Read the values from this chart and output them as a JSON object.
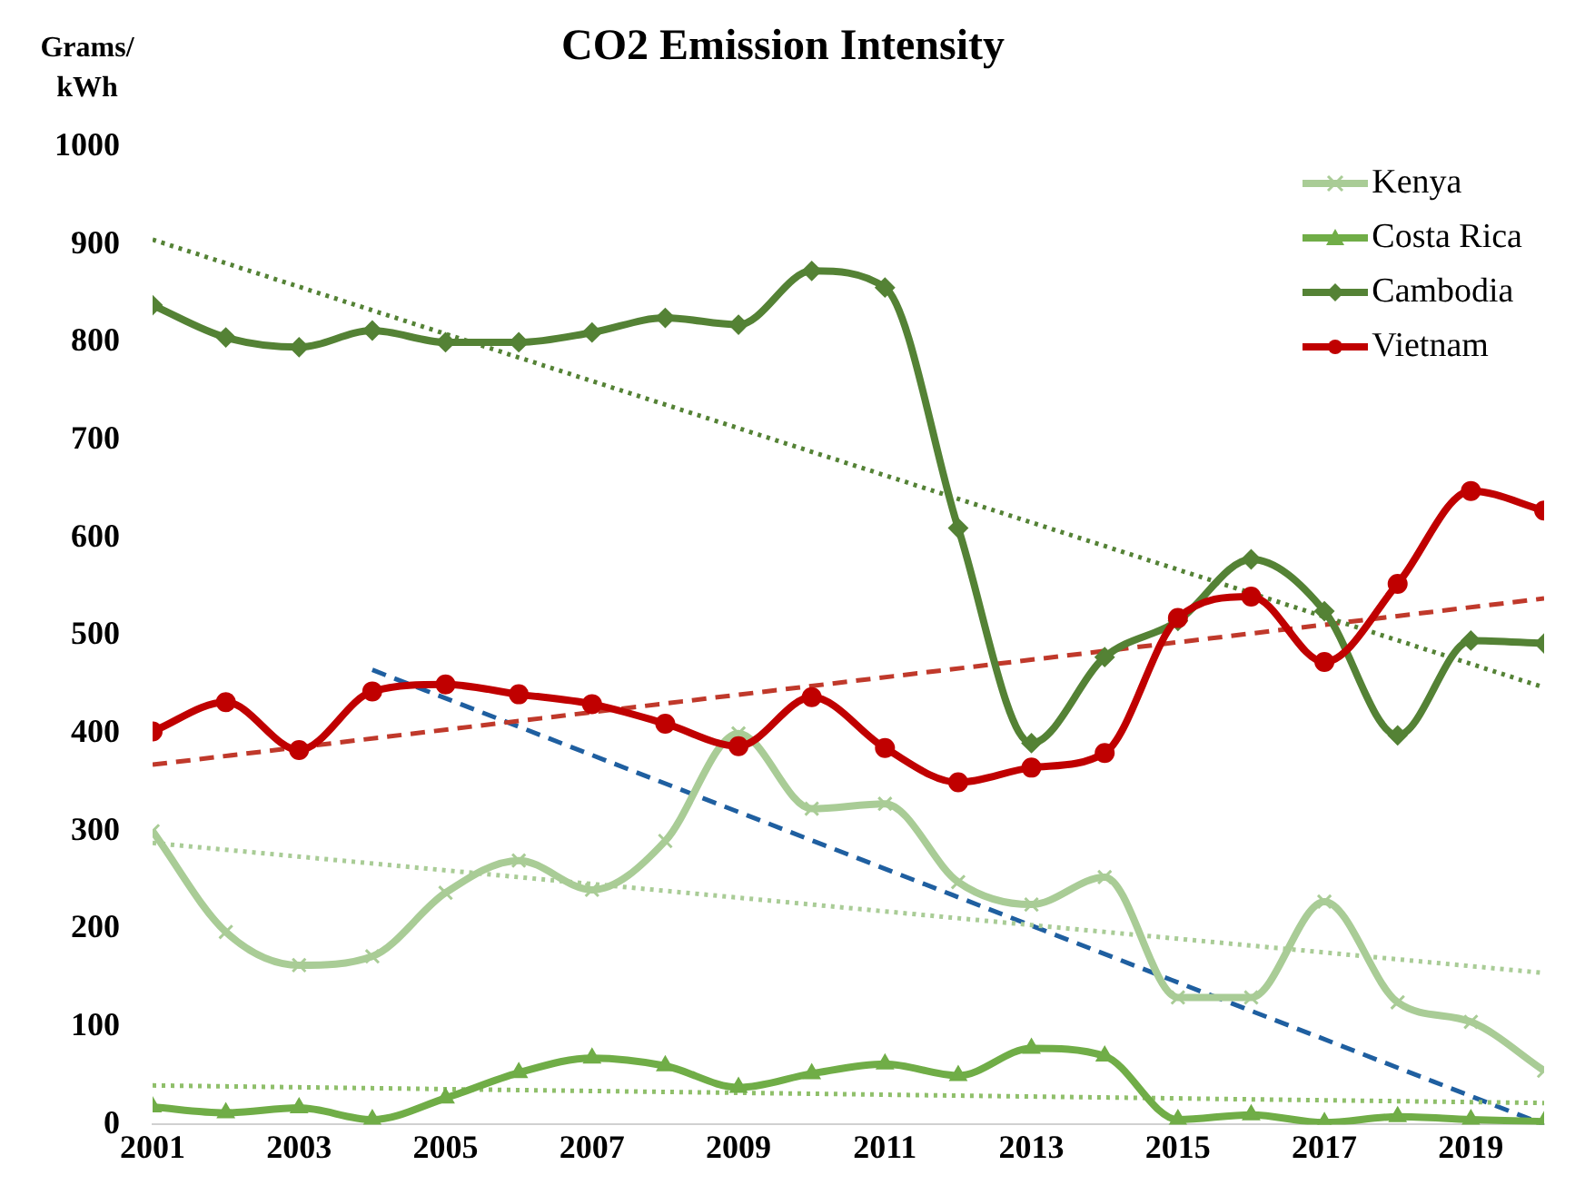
{
  "chart_data": {
    "type": "line",
    "title": "CO2 Emission Intensity",
    "ylabel": "Grams/ kWh",
    "x": [
      2001,
      2002,
      2003,
      2004,
      2005,
      2006,
      2007,
      2008,
      2009,
      2010,
      2011,
      2012,
      2013,
      2014,
      2015,
      2016,
      2017,
      2018,
      2019,
      2020
    ],
    "xlim": [
      2001,
      2020
    ],
    "xticks": [
      2001,
      2003,
      2005,
      2007,
      2009,
      2011,
      2013,
      2015,
      2017,
      2019
    ],
    "ylim": [
      0,
      1000
    ],
    "yticks": [
      0,
      100,
      200,
      300,
      400,
      500,
      600,
      700,
      800,
      900,
      1000
    ],
    "grid": false,
    "legend": "top right",
    "series": [
      {
        "name": "Kenya",
        "color": "#a9cc96",
        "marker": "cross",
        "line_style": "solid",
        "values": [
          300,
          197,
          163,
          172,
          237,
          270,
          240,
          290,
          400,
          323,
          328,
          248,
          225,
          253,
          130,
          130,
          228,
          125,
          105,
          55
        ]
      },
      {
        "name": "Costa Rica",
        "color": "#70ad47",
        "marker": "triangle",
        "line_style": "solid",
        "values": [
          18,
          12,
          17,
          5,
          27,
          53,
          68,
          60,
          38,
          52,
          62,
          50,
          78,
          70,
          5,
          10,
          2,
          8,
          5,
          3
        ]
      },
      {
        "name": "Cambodia",
        "color": "#548235",
        "marker": "diamond",
        "line_style": "solid",
        "values": [
          838,
          805,
          795,
          812,
          800,
          800,
          810,
          825,
          818,
          873,
          856,
          610,
          390,
          478,
          515,
          578,
          525,
          398,
          495,
          492
        ]
      },
      {
        "name": "Vietnam",
        "color": "#c00000",
        "marker": "circle",
        "line_style": "solid",
        "values": [
          402,
          432,
          383,
          443,
          450,
          440,
          430,
          410,
          387,
          437,
          385,
          350,
          365,
          380,
          518,
          540,
          473,
          553,
          648,
          628
        ]
      },
      {
        "color": "#a9cc96",
        "marker": "none",
        "line_style": "dotted",
        "x": [
          2001,
          2020
        ],
        "values": [
          288,
          155
        ]
      },
      {
        "color": "#8fbf6a",
        "marker": "none",
        "line_style": "dotted",
        "x": [
          2001,
          2020
        ],
        "values": [
          40,
          22
        ]
      },
      {
        "color": "#548235",
        "marker": "none",
        "line_style": "dotted",
        "x": [
          2001,
          2020
        ],
        "values": [
          905,
          447
        ]
      },
      {
        "color": "#c0392b",
        "marker": "none",
        "line_style": "dashed",
        "x": [
          2001,
          2020
        ],
        "values": [
          368,
          538
        ]
      },
      {
        "color": "#1f5fa0",
        "marker": "none",
        "line_style": "dashed",
        "x": [
          2004,
          2020
        ],
        "values": [
          465,
          0
        ]
      }
    ]
  }
}
